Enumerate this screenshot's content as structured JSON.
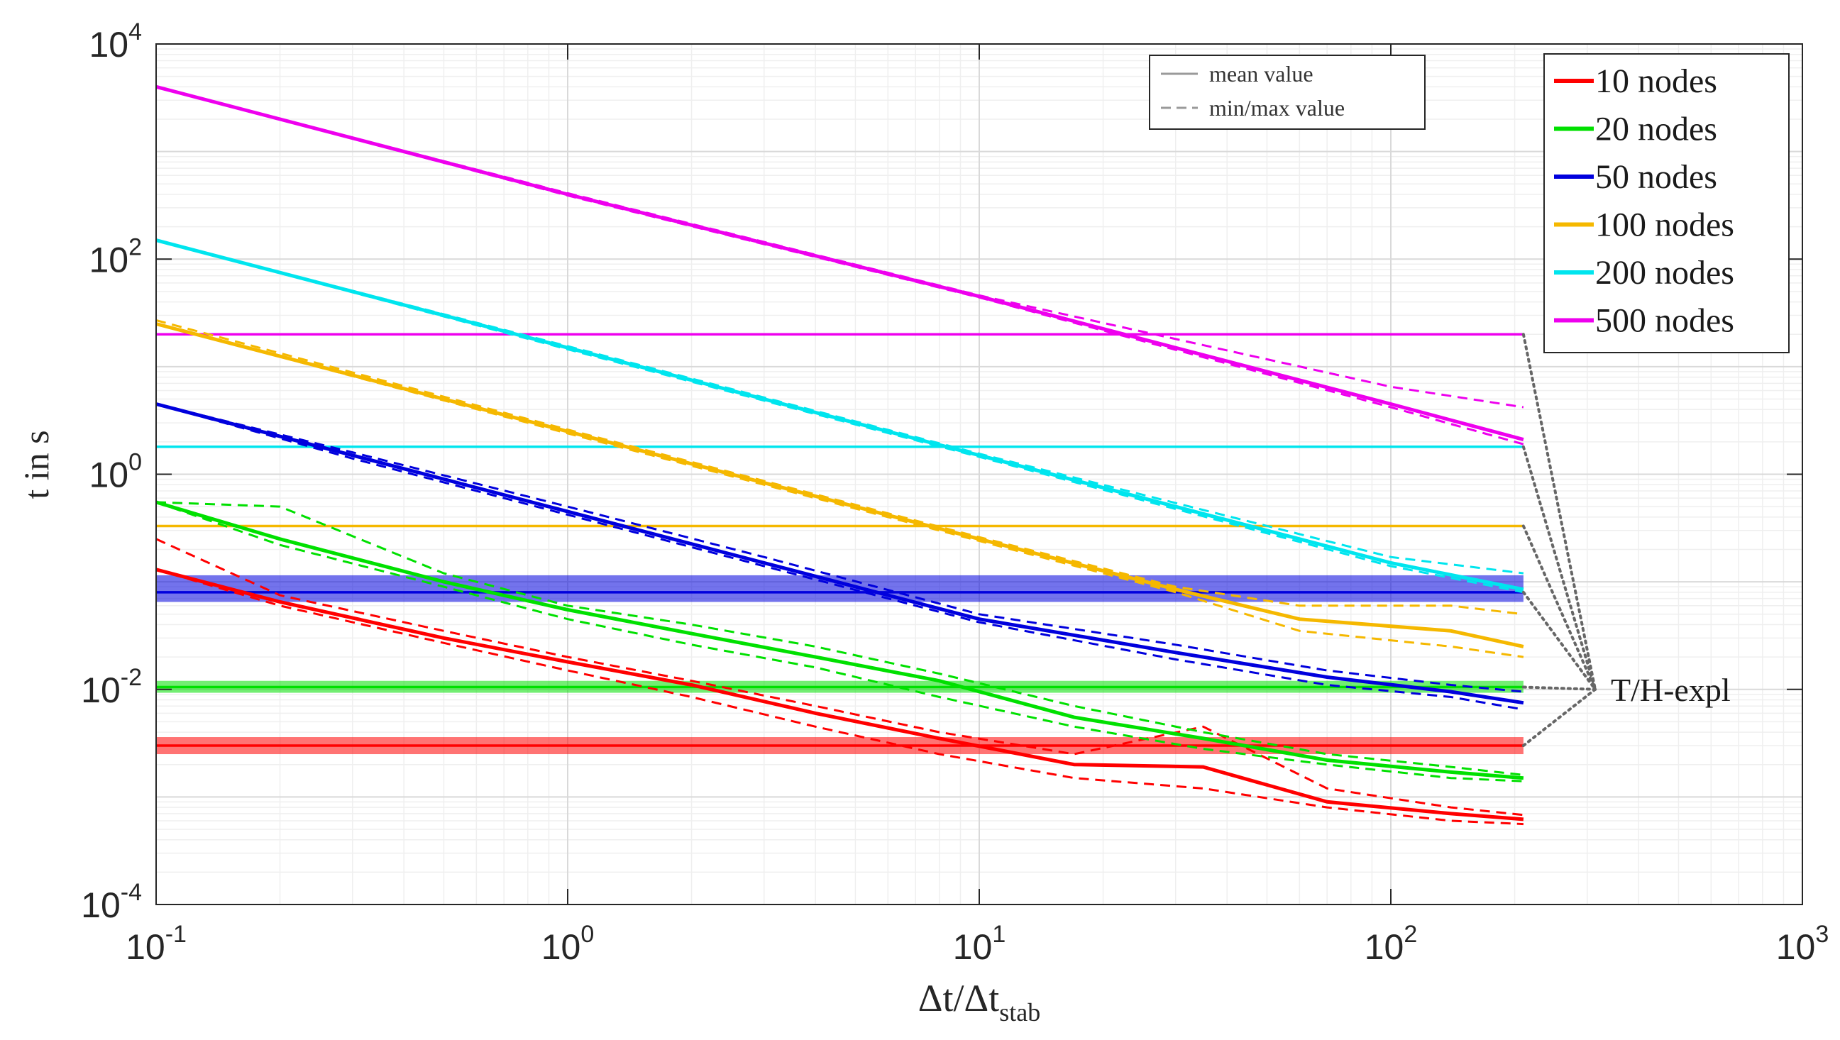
{
  "chart_data": {
    "type": "line",
    "title": "",
    "xlabel": "Δt/Δt_stab",
    "ylabel": "t in s",
    "xscale": "log",
    "yscale": "log",
    "xlim": [
      0.1,
      1000
    ],
    "ylim": [
      0.0001,
      10000
    ],
    "grid": true,
    "x_tick_labels": [
      {
        "base": "10",
        "exp": "-1",
        "value": 0.1
      },
      {
        "base": "10",
        "exp": "0",
        "value": 1
      },
      {
        "base": "10",
        "exp": "1",
        "value": 10
      },
      {
        "base": "10",
        "exp": "2",
        "value": 100
      },
      {
        "base": "10",
        "exp": "3",
        "value": 1000
      }
    ],
    "y_tick_labels": [
      {
        "base": "10",
        "exp": "-4",
        "value": 0.0001
      },
      {
        "base": "10",
        "exp": "-2",
        "value": 0.01
      },
      {
        "base": "10",
        "exp": "0",
        "value": 1
      },
      {
        "base": "10",
        "exp": "2",
        "value": 100
      },
      {
        "base": "10",
        "exp": "4",
        "value": 10000
      }
    ],
    "style_legend": {
      "position": "top-center",
      "entries": [
        {
          "label": "mean value",
          "style": "solid"
        },
        {
          "label": "min/max value",
          "style": "dashed"
        }
      ]
    },
    "series_legend_position": "top-right",
    "series": [
      {
        "name": "10 nodes",
        "color": "#ff0000",
        "mean": {
          "x": [
            0.1,
            0.2,
            0.5,
            1,
            2,
            4,
            8,
            17,
            35,
            70,
            140,
            210
          ],
          "y": [
            0.13,
            0.065,
            0.03,
            0.018,
            0.011,
            0.006,
            0.0035,
            0.002,
            0.0019,
            0.0009,
            0.0007,
            0.00062
          ]
        },
        "min": {
          "x": [
            0.1,
            0.2,
            0.5,
            1,
            2,
            4,
            8,
            17,
            35,
            70,
            140,
            210
          ],
          "y": [
            0.13,
            0.06,
            0.027,
            0.015,
            0.0085,
            0.0045,
            0.0025,
            0.0015,
            0.0012,
            0.0008,
            0.0006,
            0.00056
          ]
        },
        "max": {
          "x": [
            0.1,
            0.2,
            0.5,
            1,
            2,
            4,
            8,
            17,
            35,
            70,
            140,
            210
          ],
          "y": [
            0.25,
            0.075,
            0.035,
            0.02,
            0.012,
            0.007,
            0.004,
            0.0025,
            0.0045,
            0.0012,
            0.0008,
            0.00068
          ]
        },
        "expl": {
          "value": 0.003,
          "low": 0.0025,
          "high": 0.0036
        }
      },
      {
        "name": "20 nodes",
        "color": "#00e000",
        "mean": {
          "x": [
            0.1,
            0.2,
            0.5,
            1,
            2,
            4,
            8,
            17,
            35,
            70,
            140,
            210
          ],
          "y": [
            0.55,
            0.25,
            0.1,
            0.055,
            0.033,
            0.02,
            0.012,
            0.0055,
            0.0035,
            0.0022,
            0.0017,
            0.0015
          ]
        },
        "min": {
          "x": [
            0.1,
            0.2,
            0.5,
            1,
            2,
            4,
            8,
            17,
            35,
            70,
            140,
            210
          ],
          "y": [
            0.55,
            0.22,
            0.09,
            0.045,
            0.026,
            0.016,
            0.0085,
            0.0045,
            0.0028,
            0.002,
            0.0015,
            0.0014
          ]
        },
        "max": {
          "x": [
            0.1,
            0.2,
            0.5,
            1,
            2,
            4,
            8,
            17,
            35,
            70,
            140,
            210
          ],
          "y": [
            0.55,
            0.5,
            0.12,
            0.06,
            0.04,
            0.025,
            0.014,
            0.007,
            0.004,
            0.0025,
            0.0019,
            0.0016
          ]
        },
        "expl": {
          "value": 0.0105,
          "low": 0.0093,
          "high": 0.012
        }
      },
      {
        "name": "50 nodes",
        "color": "#0000dd",
        "mean": {
          "x": [
            0.1,
            0.3,
            1,
            3,
            10,
            30,
            70,
            140,
            210
          ],
          "y": [
            4.5,
            1.5,
            0.45,
            0.15,
            0.045,
            0.022,
            0.013,
            0.0095,
            0.0075
          ]
        },
        "min": {
          "x": [
            0.1,
            0.3,
            1,
            3,
            10,
            30,
            70,
            140,
            210
          ],
          "y": [
            4.5,
            1.4,
            0.42,
            0.14,
            0.042,
            0.019,
            0.011,
            0.0085,
            0.0065
          ]
        },
        "max": {
          "x": [
            0.1,
            0.3,
            1,
            3,
            10,
            30,
            70,
            140,
            210
          ],
          "y": [
            4.5,
            1.6,
            0.5,
            0.17,
            0.05,
            0.026,
            0.015,
            0.011,
            0.0095
          ]
        },
        "expl": {
          "value": 0.08,
          "low": 0.065,
          "high": 0.115
        }
      },
      {
        "name": "100 nodes",
        "color": "#f5b800",
        "mean": {
          "x": [
            0.1,
            1,
            10,
            30,
            60,
            140,
            210
          ],
          "y": [
            25,
            2.5,
            0.25,
            0.085,
            0.045,
            0.035,
            0.025
          ]
        },
        "min": {
          "x": [
            0.1,
            1,
            10,
            30,
            60,
            140,
            210
          ],
          "y": [
            25,
            2.4,
            0.24,
            0.08,
            0.035,
            0.025,
            0.02
          ]
        },
        "max": {
          "x": [
            0.1,
            1,
            10,
            30,
            60,
            140,
            210
          ],
          "y": [
            27,
            2.6,
            0.26,
            0.09,
            0.06,
            0.06,
            0.05
          ]
        },
        "expl": {
          "value": 0.33,
          "low": 0.33,
          "high": 0.33
        }
      },
      {
        "name": "200 nodes",
        "color": "#00e5ee",
        "mean": {
          "x": [
            0.1,
            1,
            10,
            100,
            210
          ],
          "y": [
            150,
            15,
            1.5,
            0.15,
            0.085
          ]
        },
        "min": {
          "x": [
            0.1,
            1,
            10,
            100,
            210
          ],
          "y": [
            150,
            14.5,
            1.45,
            0.14,
            0.08
          ]
        },
        "max": {
          "x": [
            0.1,
            1,
            10,
            100,
            210
          ],
          "y": [
            150,
            15.5,
            1.55,
            0.17,
            0.12
          ]
        },
        "expl": {
          "value": 1.8,
          "low": 1.8,
          "high": 1.8
        }
      },
      {
        "name": "500 nodes",
        "color": "#ee00ee",
        "mean": {
          "x": [
            0.1,
            1,
            10,
            100,
            210
          ],
          "y": [
            4000,
            400,
            45,
            4.5,
            2.1
          ]
        },
        "min": {
          "x": [
            0.1,
            1,
            10,
            100,
            210
          ],
          "y": [
            4000,
            390,
            44,
            4.2,
            1.9
          ]
        },
        "max": {
          "x": [
            0.1,
            1,
            10,
            100,
            210
          ],
          "y": [
            4000,
            410,
            46,
            6.5,
            4.2
          ]
        },
        "expl": {
          "value": 20,
          "low": 20,
          "high": 20
        }
      }
    ],
    "expl_x_end": 210,
    "annotations": [
      {
        "text": "T/H-expl",
        "anchor_x": 330,
        "anchor_y": 0.01
      }
    ]
  }
}
